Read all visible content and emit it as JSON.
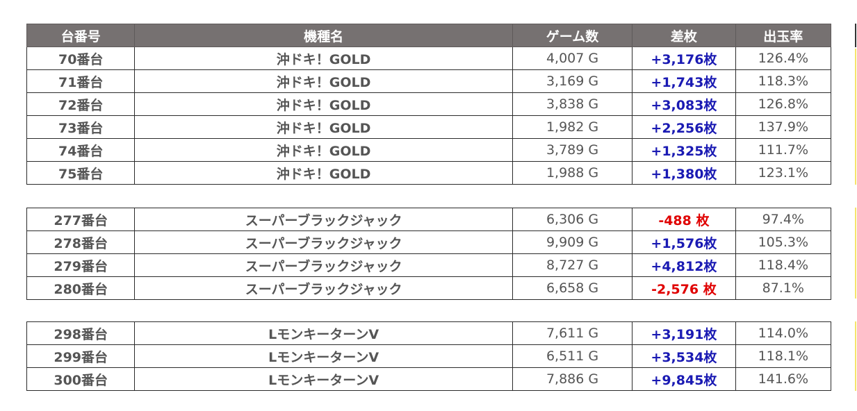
{
  "headers": {
    "no": "台番号",
    "name": "機種名",
    "games": "ゲーム数",
    "diff": "差枚",
    "rate": "出玉率"
  },
  "groups": [
    {
      "rows": [
        {
          "no": "70番台",
          "name": "沖ドキ！GOLD",
          "games": "4,007 G",
          "diff": "+3,176枚",
          "rate": "126.4%"
        },
        {
          "no": "71番台",
          "name": "沖ドキ！GOLD",
          "games": "3,169 G",
          "diff": "+1,743枚",
          "rate": "118.3%"
        },
        {
          "no": "72番台",
          "name": "沖ドキ！GOLD",
          "games": "3,838 G",
          "diff": "+3,083枚",
          "rate": "126.8%"
        },
        {
          "no": "73番台",
          "name": "沖ドキ！GOLD",
          "games": "1,982 G",
          "diff": "+2,256枚",
          "rate": "137.9%"
        },
        {
          "no": "74番台",
          "name": "沖ドキ！GOLD",
          "games": "3,789 G",
          "diff": "+1,325枚",
          "rate": "111.7%"
        },
        {
          "no": "75番台",
          "name": "沖ドキ！GOLD",
          "games": "1,988 G",
          "diff": "+1,380枚",
          "rate": "123.1%"
        }
      ]
    },
    {
      "rows": [
        {
          "no": "277番台",
          "name": "スーパーブラックジャック",
          "games": "6,306 G",
          "diff": "-488 枚",
          "rate": "97.4%"
        },
        {
          "no": "278番台",
          "name": "スーパーブラックジャック",
          "games": "9,909 G",
          "diff": "+1,576枚",
          "rate": "105.3%"
        },
        {
          "no": "279番台",
          "name": "スーパーブラックジャック",
          "games": "8,727 G",
          "diff": "+4,812枚",
          "rate": "118.4%"
        },
        {
          "no": "280番台",
          "name": "スーパーブラックジャック",
          "games": "6,658 G",
          "diff": "-2,576 枚",
          "rate": "87.1%"
        }
      ]
    },
    {
      "rows": [
        {
          "no": "298番台",
          "name": "LモンキーターンV",
          "games": "7,611 G",
          "diff": "+3,191枚",
          "rate": "114.0%"
        },
        {
          "no": "299番台",
          "name": "LモンキーターンV",
          "games": "6,511 G",
          "diff": "+3,534枚",
          "rate": "118.1%"
        },
        {
          "no": "300番台",
          "name": "LモンキーターンV",
          "games": "7,886 G",
          "diff": "+9,845枚",
          "rate": "141.6%"
        }
      ]
    }
  ],
  "colors": {
    "header_bg": "#767171",
    "positive": "#1a1ab3",
    "negative": "#e00000"
  }
}
